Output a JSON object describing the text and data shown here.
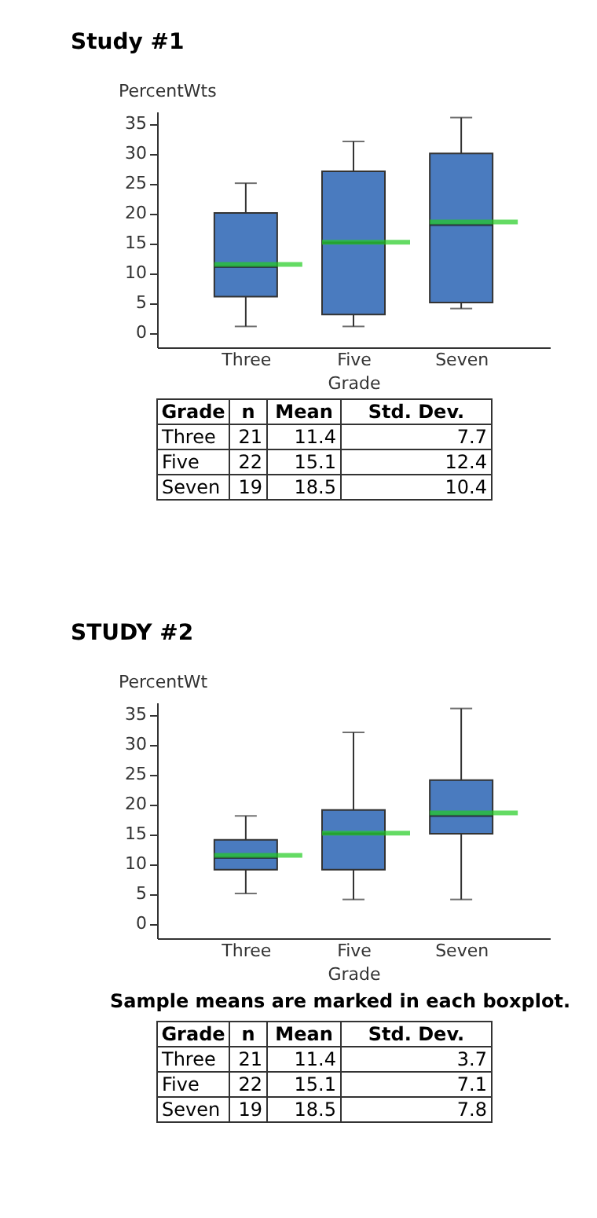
{
  "chart_data": [
    {
      "type": "box",
      "title": "Study #1",
      "xlabel": "Grade",
      "ylabel": "PercentWts",
      "categories": [
        "Three",
        "Five",
        "Seven"
      ],
      "color": "#4a7bbf",
      "ylim": [
        -2.5,
        37
      ],
      "yticks": [
        0,
        5,
        10,
        15,
        20,
        25,
        30,
        35
      ],
      "grid": false,
      "legend": false,
      "boxes": [
        {
          "low": 1,
          "q1": 6,
          "median": 11,
          "q3": 20,
          "high": 25,
          "mean": 11.4
        },
        {
          "low": 1,
          "q1": 3,
          "median": 15,
          "q3": 27,
          "high": 32,
          "mean": 15.1
        },
        {
          "low": 4,
          "q1": 5,
          "median": 18,
          "q3": 30,
          "high": 36,
          "mean": 18.5
        }
      ]
    },
    {
      "type": "other",
      "categories": [
        "Grade",
        "n",
        "Mean",
        "Std. Dev."
      ],
      "annotations": [
        "Three",
        "21",
        "11.4",
        "7.7",
        "Five",
        "22",
        "15.1",
        "12.4",
        "Seven",
        "19",
        "18.5",
        "10.4"
      ]
    },
    {
      "type": "box",
      "title": "STUDY #2",
      "xlabel": "Grade",
      "ylabel": "PercentWt",
      "categories": [
        "Three",
        "Five",
        "Seven"
      ],
      "color": "#4a7bbf",
      "ylim": [
        -2.5,
        37
      ],
      "yticks": [
        0,
        5,
        10,
        15,
        20,
        25,
        30,
        35
      ],
      "grid": false,
      "legend": false,
      "annotations": [
        "Sample means are marked in each boxplot."
      ],
      "boxes": [
        {
          "low": 5,
          "q1": 9,
          "median": 11,
          "q3": 14,
          "high": 18,
          "mean": 11.4
        },
        {
          "low": 4,
          "q1": 9,
          "median": 15,
          "q3": 19,
          "high": 32,
          "mean": 15.1
        },
        {
          "low": 4,
          "q1": 15,
          "median": 18,
          "q3": 24,
          "high": 36,
          "mean": 18.5
        }
      ]
    },
    {
      "type": "other",
      "categories": [
        "Grade",
        "n",
        "Mean",
        "Std. Dev."
      ],
      "annotations": [
        "Three",
        "21",
        "11.4",
        "3.7",
        "Five",
        "22",
        "15.1",
        "7.1",
        "Seven",
        "19",
        "18.5",
        "7.8"
      ]
    }
  ]
}
